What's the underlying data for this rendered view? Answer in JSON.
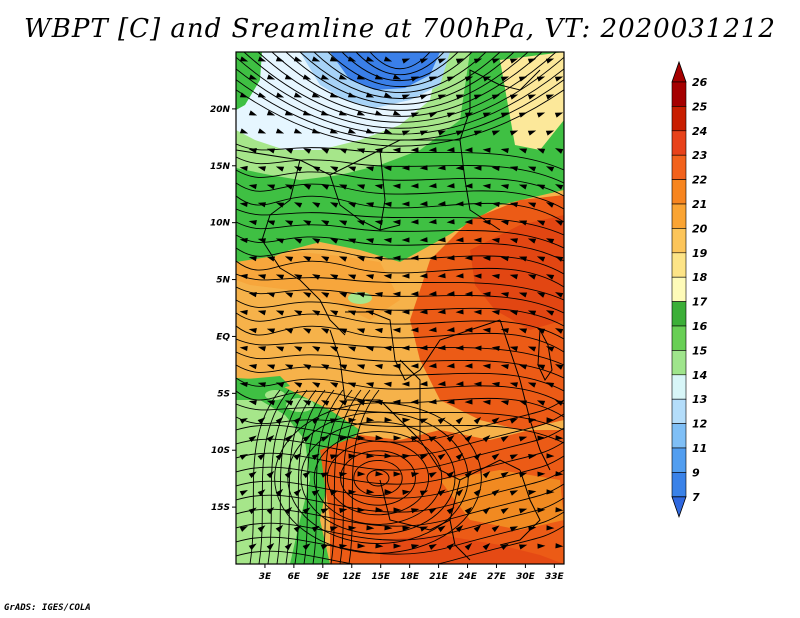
{
  "title": "WBPT [C] and Sreamline at 700hPa, VT: 2020031212",
  "footer": "GrADS: IGES/COLA",
  "map": {
    "lon_labels": [
      "3E",
      "6E",
      "9E",
      "12E",
      "15E",
      "18E",
      "21E",
      "24E",
      "27E",
      "30E",
      "33E"
    ],
    "lon_values": [
      3,
      6,
      9,
      12,
      15,
      18,
      21,
      24,
      27,
      30,
      33
    ],
    "lat_labels": [
      "20N",
      "15N",
      "10N",
      "5N",
      "EQ",
      "5S",
      "10S",
      "15S"
    ],
    "lat_values": [
      20,
      15,
      10,
      5,
      0,
      -5,
      -10,
      -15
    ],
    "lon_range": [
      0,
      34
    ],
    "lat_range": [
      -20,
      25
    ],
    "field_colors": {
      "deep_blue": "#3a7fe8",
      "light_blue": "#a7d3f7",
      "pale": "#e6f6ff",
      "green": "#3fc043",
      "light_green": "#a6e68a",
      "pale_yellow": "#fce89a",
      "orange_light": "#f6b24a",
      "orange": "#f18a21",
      "red_orange": "#ec5b16"
    }
  },
  "colorbar": {
    "labels": [
      "26",
      "25",
      "24",
      "23",
      "22",
      "21",
      "20",
      "19",
      "18",
      "17",
      "16",
      "15",
      "14",
      "13",
      "12",
      "11",
      "9",
      "7"
    ],
    "colors": [
      "#a50000",
      "#c81e00",
      "#e8421a",
      "#f2621c",
      "#f7851f",
      "#faa433",
      "#fcc55a",
      "#fde487",
      "#fefbb9",
      "#3caf38",
      "#68cf55",
      "#9fe58c",
      "#d8f6f8",
      "#b4ddfa",
      "#7fbff6",
      "#529ef0",
      "#3a82e8",
      "#2f68df"
    ],
    "top_color": "#a50000",
    "bottom_color": "#2f68df"
  }
}
